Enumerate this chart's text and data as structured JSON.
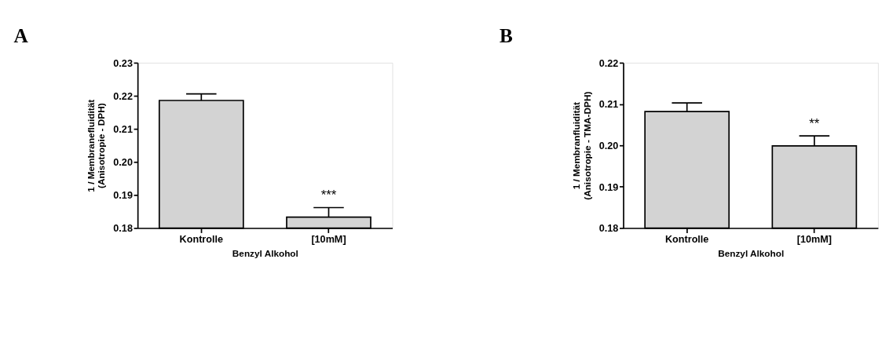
{
  "chart_data": [
    {
      "type": "bar",
      "title": "A",
      "categories": [
        "Kontrolle",
        "[10mM]"
      ],
      "values": [
        0.2186,
        0.1833
      ],
      "errors": [
        [
          0.2186,
          0.2206
        ],
        [
          0.1833,
          0.1862
        ]
      ],
      "color": "#d3d3d3",
      "ylabel": "1 / Membranefluidität\n(Anisotropie - DPH)",
      "xlabel": "Benzyl Alkohol",
      "ylim": [
        0.18,
        0.23
      ],
      "yticks": [
        0.18,
        0.19,
        {
          "value": 0.2,
          "label": "0.20"
        },
        0.21,
        0.22,
        0.23
      ],
      "annotations": [
        {
          "text": "***",
          "x": "[10mM]",
          "y": 0.1862
        }
      ]
    },
    {
      "type": "bar",
      "title": "B",
      "categories": [
        "Kontrolle",
        "[10mM]"
      ],
      "values": [
        0.2082,
        0.1999
      ],
      "errors": [
        [
          0.2082,
          0.2103
        ],
        [
          0.1999,
          0.2023
        ]
      ],
      "color": "#d3d3d3",
      "ylabel": "1 / Membranfluidität\n(Anisotropie - TMA-DPH)",
      "xlabel": "Benzyl Alkohol",
      "ylim": [
        0.18,
        0.22
      ],
      "yticks": [
        0.18,
        0.19,
        {
          "value": 0.2,
          "label": "0.20"
        },
        0.21,
        0.22
      ],
      "annotations": [
        {
          "text": "**",
          "x": "[10mM]",
          "y": 0.2023
        }
      ]
    }
  ]
}
